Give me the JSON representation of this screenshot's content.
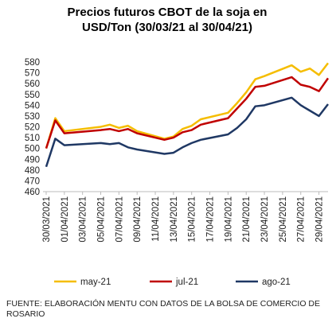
{
  "chart_data": {
    "type": "line",
    "title": "Precios futuros CBOT de la soja en USD/Ton (30/03/21 al 30/04/21)",
    "x": [
      "30/03/2021",
      "31/03/2021",
      "01/04/2021",
      "05/04/2021",
      "06/04/2021",
      "07/04/2021",
      "08/04/2021",
      "09/04/2021",
      "12/04/2021",
      "13/04/2021",
      "14/04/2021",
      "15/04/2021",
      "16/04/2021",
      "19/04/2021",
      "20/04/2021",
      "21/04/2021",
      "22/04/2021",
      "23/04/2021",
      "26/04/2021",
      "27/04/2021",
      "28/04/2021",
      "29/04/2021",
      "30/04/2021"
    ],
    "xlim": [
      "30/03/2021",
      "30/04/2021"
    ],
    "xticks": [
      "30/03/2021",
      "01/04/2021",
      "03/04/2021",
      "05/04/2021",
      "07/04/2021",
      "09/04/2021",
      "11/04/2021",
      "13/04/2021",
      "15/04/2021",
      "17/04/2021",
      "19/04/2021",
      "21/04/2021",
      "23/04/2021",
      "25/04/2021",
      "27/04/2021",
      "29/04/2021"
    ],
    "series": [
      {
        "name": "may-21",
        "color": "#f5bd00",
        "values": [
          500,
          528,
          516,
          520,
          522,
          519,
          521,
          516,
          509,
          511,
          518,
          521,
          527,
          533,
          542,
          552,
          564,
          567,
          577,
          571,
          574,
          568,
          579
        ]
      },
      {
        "name": "jul-21",
        "color": "#c00000",
        "values": [
          500,
          526,
          514,
          517,
          518,
          516,
          518,
          514,
          508,
          510,
          515,
          517,
          522,
          528,
          537,
          546,
          557,
          558,
          566,
          559,
          557,
          553,
          565
        ]
      },
      {
        "name": "ago-21",
        "color": "#1f3864",
        "values": [
          483,
          509,
          503,
          505,
          504,
          505,
          501,
          499,
          495,
          496,
          501,
          505,
          508,
          513,
          519,
          527,
          539,
          540,
          547,
          540,
          535,
          530,
          541
        ]
      }
    ],
    "ylim": [
      460,
      580
    ],
    "yticks": [
      460,
      470,
      480,
      490,
      500,
      510,
      520,
      530,
      540,
      550,
      560,
      570,
      580
    ],
    "legend": "bottom",
    "footnote": "FUENTE: ELABORACIÓN MENTU CON DATOS DE LA BOLSA DE COMERCIO DE ROSARIO"
  }
}
